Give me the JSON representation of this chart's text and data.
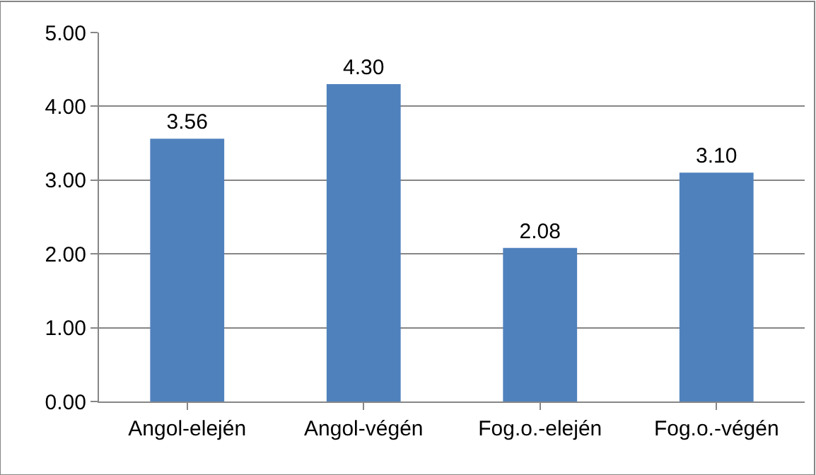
{
  "chart_data": {
    "type": "bar",
    "categories": [
      "Angol-elején",
      "Angol-végén",
      "Fog.o.-elején",
      "Fog.o.-végén"
    ],
    "values": [
      3.56,
      4.3,
      2.08,
      3.1
    ],
    "value_labels": [
      "3.56",
      "4.30",
      "2.08",
      "3.10"
    ],
    "color": "#4f81bd",
    "ylim": [
      0,
      5
    ],
    "yticks": [
      {
        "value": 0,
        "label": "0.00"
      },
      {
        "value": 1,
        "label": "1.00"
      },
      {
        "value": 2,
        "label": "2.00"
      },
      {
        "value": 3,
        "label": "3.00"
      },
      {
        "value": 4,
        "label": "4.00"
      },
      {
        "value": 5,
        "label": "5.00"
      }
    ],
    "grid": "y",
    "legend": false
  }
}
